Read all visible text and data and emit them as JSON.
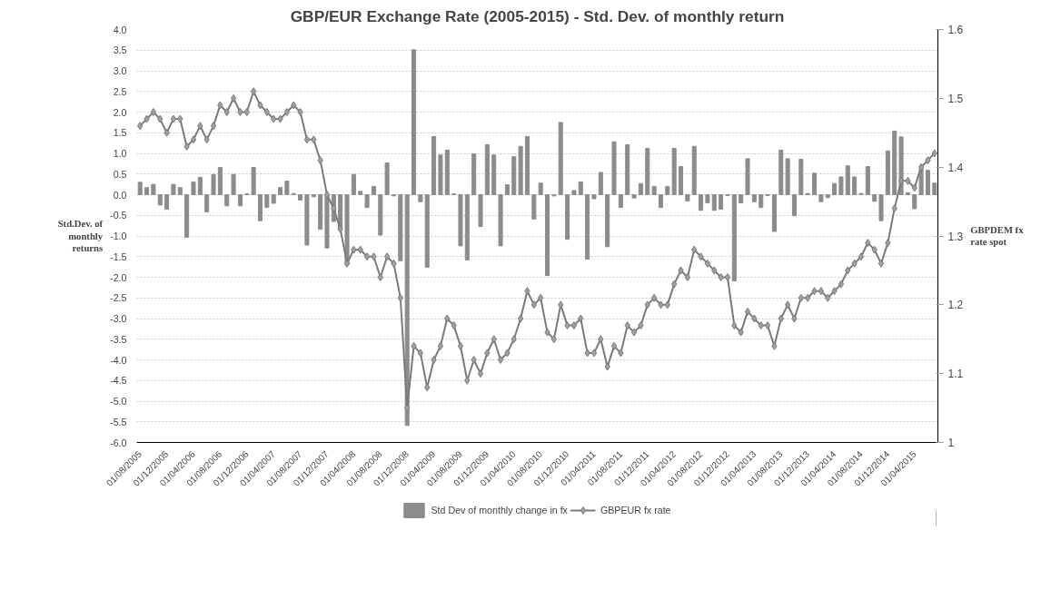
{
  "chart_data": {
    "type": "bar",
    "title": "GBP/EUR Exchange Rate (2005-2015) - Std. Dev. of monthly return",
    "ylabel": "Std.Dev. of monthly returns",
    "y2label": "GBPDEM fx rate spot",
    "categories": [
      "01/08/2005",
      null,
      null,
      null,
      "01/12/2005",
      null,
      null,
      null,
      "01/04/2006",
      null,
      null,
      null,
      "01/08/2006",
      null,
      null,
      null,
      "01/12/2006",
      null,
      null,
      null,
      "01/04/2007",
      null,
      null,
      null,
      "01/08/2007",
      null,
      null,
      null,
      "01/12/2007",
      null,
      null,
      null,
      "01/04/2008",
      null,
      null,
      null,
      "01/08/2008",
      null,
      null,
      null,
      "01/12/2008",
      null,
      null,
      null,
      "01/04/2009",
      null,
      null,
      null,
      "01/08/2009",
      null,
      null,
      null,
      "01/12/2009",
      null,
      null,
      null,
      "01/04/2010",
      null,
      null,
      null,
      "01/08/2010",
      null,
      null,
      null,
      "01/12/2010",
      null,
      null,
      null,
      "01/04/2011",
      null,
      null,
      null,
      "01/08/2011",
      null,
      null,
      null,
      "01/12/2011",
      null,
      null,
      null,
      "01/04/2012",
      null,
      null,
      null,
      "01/08/2012",
      null,
      null,
      null,
      "01/12/2012",
      null,
      null,
      null,
      "01/04/2013",
      null,
      null,
      null,
      "01/08/2013",
      null,
      null,
      null,
      "01/12/2013",
      null,
      null,
      null,
      "01/04/2014",
      null,
      null,
      null,
      "01/08/2014",
      null,
      null,
      null,
      "01/12/2014",
      null,
      null,
      null,
      "01/04/2015",
      null,
      null,
      null
    ],
    "series": [
      {
        "name": "Std Dev of monthly change in fx",
        "color": "#8c8c8c",
        "values": [
          0.3,
          0.17,
          0.25,
          -0.25,
          -0.35,
          0.25,
          0.17,
          -1.03,
          0.31,
          0.42,
          -0.42,
          0.49,
          0.66,
          -0.27,
          0.49,
          -0.27,
          0.02,
          0.66,
          -0.63,
          -0.31,
          -0.21,
          0.17,
          0.33,
          0.03,
          -0.13,
          -1.22,
          -0.05,
          -0.84,
          -1.29,
          -0.65,
          -0.85,
          -1.7,
          0.49,
          0.08,
          -0.31,
          0.2,
          -0.98,
          0.77,
          -0.03,
          -1.6,
          -5.59,
          3.51,
          -0.17,
          -1.76,
          1.41,
          0.96,
          1.08,
          0.02,
          -1.24,
          -1.58,
          0.99,
          -0.77,
          1.21,
          0.96,
          -1.24,
          0.24,
          0.92,
          1.17,
          1.41,
          -0.59,
          0.28,
          -1.96,
          -0.03,
          1.75,
          -1.08,
          0.1,
          0.31,
          -1.56,
          -0.1,
          0.54,
          -1.26,
          1.28,
          -0.31,
          1.21,
          -0.08,
          0.27,
          1.12,
          0.2,
          -0.31,
          0.2,
          1.12,
          0.68,
          -0.15,
          1.17,
          -0.38,
          -0.2,
          -0.38,
          -0.35,
          -0.02,
          -2.09,
          -0.2,
          0.87,
          -0.17,
          -0.31,
          -0.02,
          -0.89,
          1.08,
          0.87,
          -0.51,
          0.86,
          0.03,
          0.52,
          -0.17,
          -0.07,
          0.27,
          0.43,
          0.7,
          0.43,
          0.03,
          0.68,
          -0.16,
          -0.63,
          1.06,
          1.54,
          1.4,
          0.05,
          -0.34,
          0.63,
          0.59,
          0.28
        ]
      },
      {
        "name": "GBPEUR fx rate",
        "type": "line",
        "axis": "y2",
        "color": "#7a7a7a",
        "marker": "diamond",
        "values": [
          1.46,
          1.47,
          1.48,
          1.47,
          1.45,
          1.47,
          1.47,
          1.43,
          1.44,
          1.46,
          1.44,
          1.46,
          1.49,
          1.48,
          1.5,
          1.48,
          1.48,
          1.51,
          1.49,
          1.48,
          1.47,
          1.47,
          1.48,
          1.49,
          1.48,
          1.44,
          1.44,
          1.41,
          1.36,
          1.34,
          1.31,
          1.26,
          1.28,
          1.28,
          1.27,
          1.27,
          1.24,
          1.27,
          1.26,
          1.21,
          1.05,
          1.14,
          1.13,
          1.08,
          1.12,
          1.14,
          1.18,
          1.17,
          1.14,
          1.09,
          1.12,
          1.1,
          1.13,
          1.15,
          1.12,
          1.13,
          1.15,
          1.18,
          1.22,
          1.2,
          1.21,
          1.16,
          1.15,
          1.2,
          1.17,
          1.17,
          1.18,
          1.13,
          1.13,
          1.15,
          1.11,
          1.14,
          1.13,
          1.17,
          1.16,
          1.17,
          1.2,
          1.21,
          1.2,
          1.2,
          1.23,
          1.25,
          1.24,
          1.28,
          1.27,
          1.26,
          1.25,
          1.24,
          1.24,
          1.17,
          1.16,
          1.19,
          1.18,
          1.17,
          1.17,
          1.14,
          1.18,
          1.2,
          1.18,
          1.21,
          1.21,
          1.22,
          1.22,
          1.21,
          1.22,
          1.23,
          1.25,
          1.26,
          1.27,
          1.29,
          1.28,
          1.26,
          1.29,
          1.34,
          1.38,
          1.38,
          1.37,
          1.4,
          1.41,
          1.42
        ]
      }
    ],
    "ylim": [
      -6,
      4
    ],
    "yticks": [
      {
        "value": -6,
        "label": "-6.0"
      },
      {
        "value": -5.5,
        "label": "-5.5"
      },
      {
        "value": -5,
        "label": "-5.0"
      },
      {
        "value": -4.5,
        "label": "-4.5"
      },
      {
        "value": -4,
        "label": "-4.0"
      },
      {
        "value": -3.5,
        "label": "-3.5"
      },
      {
        "value": -3,
        "label": "-3.0"
      },
      {
        "value": -2.5,
        "label": "-2.5"
      },
      {
        "value": -2,
        "label": "-2.0"
      },
      {
        "value": -1.5,
        "label": "-1.5"
      },
      {
        "value": -1,
        "label": "-1.0"
      },
      {
        "value": -0.5,
        "label": "-0.5"
      },
      {
        "value": 0,
        "label": "0.0"
      },
      {
        "value": 0.5,
        "label": "0.5"
      },
      {
        "value": 1,
        "label": "1.0"
      },
      {
        "value": 1.5,
        "label": "1.5"
      },
      {
        "value": 2,
        "label": "2.0"
      },
      {
        "value": 2.5,
        "label": "2.5"
      },
      {
        "value": 3,
        "label": "3.0"
      },
      {
        "value": 3.5,
        "label": "3.5"
      },
      {
        "value": 4,
        "label": "4.0"
      }
    ],
    "y2lim": [
      1,
      1.6
    ],
    "y2ticks": [
      1,
      1.1,
      1.2,
      1.3,
      1.4,
      1.5,
      1.6
    ],
    "grid": "y",
    "legend": "bottom"
  }
}
